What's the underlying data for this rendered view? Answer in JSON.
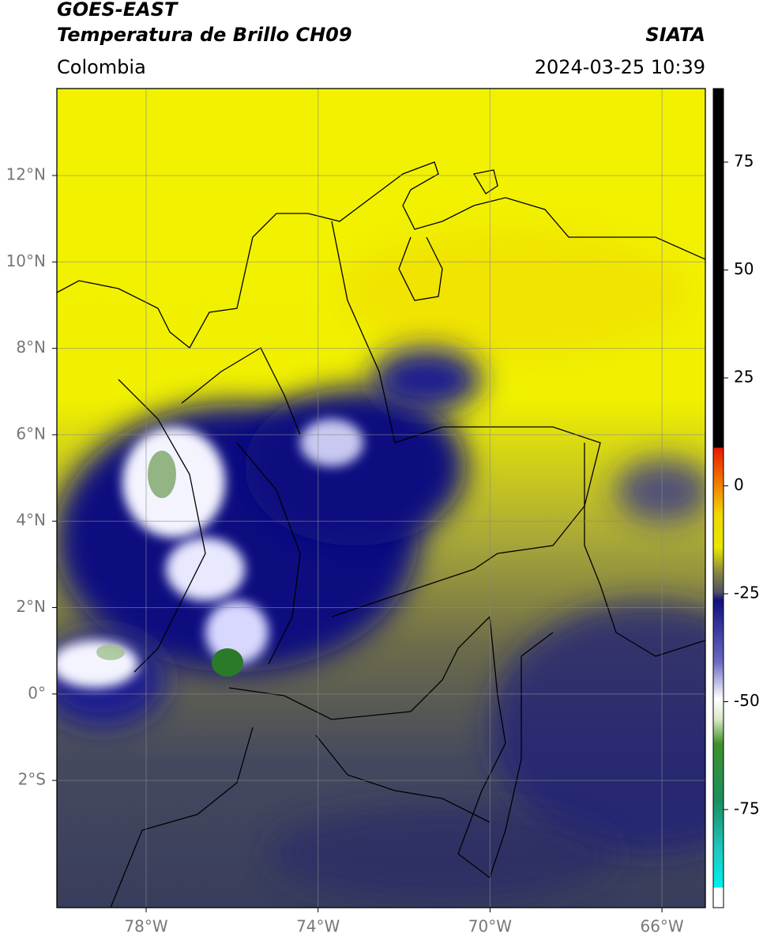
{
  "header": {
    "title": "GOES-EAST",
    "subtitle": "Temperatura de Brillo CH09",
    "source": "SIATA",
    "region": "Colombia",
    "timestamp": "2024-03-25 10:39"
  },
  "map": {
    "lat_labels": [
      "12°N",
      "10°N",
      "8°N",
      "6°N",
      "4°N",
      "2°N",
      "0°",
      "2°S"
    ],
    "lon_labels": [
      "78°W",
      "74°W",
      "70°W",
      "66°W"
    ]
  },
  "colorbar": {
    "tick_labels": [
      "75",
      "50",
      "25",
      "0",
      "-25",
      "-50",
      "-75"
    ]
  }
}
